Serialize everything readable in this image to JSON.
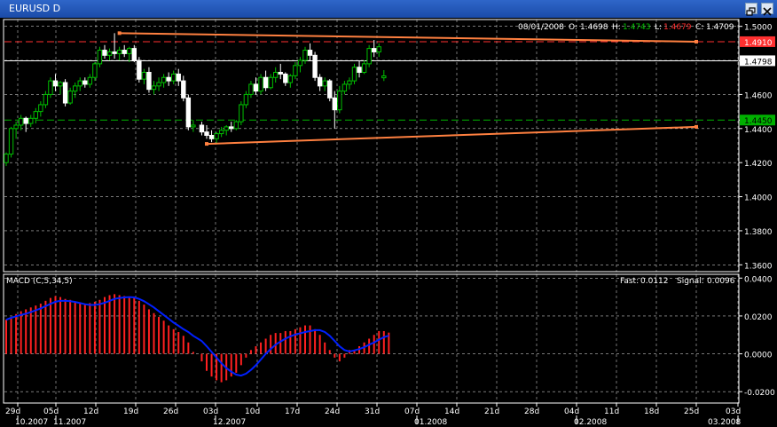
{
  "window": {
    "title": "EURUSD D"
  },
  "price_panel": {
    "ohlc": {
      "date": "08/01/2008",
      "o_label": "O:",
      "open": "1.4698",
      "h_label": "H:",
      "high": "1.4743",
      "l_label": "L:",
      "low": "1.4679",
      "c_label": "C:",
      "close": "1.4709"
    },
    "axis_labels": [
      "1.5000",
      "1.4798",
      "1.4600",
      "1.4450",
      "1.4400",
      "1.4200",
      "1.4000",
      "1.3800",
      "1.3600"
    ],
    "price_tags": {
      "red": "1.4910",
      "white": "1.4798",
      "green": "1.4450"
    }
  },
  "macd_panel": {
    "title": "MACD (C,5,34,5)",
    "fast_label": "Fast:",
    "fast": "0.0112",
    "signal_label": "Signal:",
    "signal": "0.0096",
    "axis_labels": [
      "0.0400",
      "0.0200",
      "0.0000",
      "-0.0200"
    ]
  },
  "time_axis": {
    "days": [
      "29d",
      "05d",
      "12d",
      "19d",
      "26d",
      "03d",
      "10d",
      "17d",
      "24d",
      "31d",
      "07d",
      "14d",
      "21d",
      "28d",
      "04d",
      "11d",
      "18d",
      "25d",
      "03d"
    ],
    "months": [
      "10.2007",
      "11.2007",
      "12.2007",
      "01.2008",
      "02.2008",
      "03.2008"
    ]
  },
  "colors": {
    "background": "#000000",
    "grid": "#c0c0c0",
    "bull": "#00c000",
    "bear": "#ffffff",
    "trendline": "#ff8040",
    "macd_hist": "#ff2020",
    "signal": "#0020ff",
    "resistance": "#ff3030",
    "support": "#00b000"
  },
  "chart_data": [
    {
      "type": "line",
      "title": "EURUSD D",
      "ylim": [
        1.356,
        1.504
      ],
      "dates": [
        "2007-10-29",
        "2007-11-05",
        "2007-11-12",
        "2007-11-19",
        "2007-11-26",
        "2007-12-03",
        "2007-12-10",
        "2007-12-17",
        "2007-12-24",
        "2007-12-31",
        "2008-01-07",
        "2008-01-14",
        "2008-01-21",
        "2008-01-28",
        "2008-02-04",
        "2008-02-11",
        "2008-02-18",
        "2008-02-25",
        "2008-03-03"
      ],
      "candles": [
        [
          1.42,
          1.426,
          1.418,
          1.425
        ],
        [
          1.425,
          1.441,
          1.423,
          1.44
        ],
        [
          1.44,
          1.444,
          1.434,
          1.442
        ],
        [
          1.442,
          1.448,
          1.439,
          1.446
        ],
        [
          1.446,
          1.447,
          1.438,
          1.443
        ],
        [
          1.443,
          1.448,
          1.441,
          1.446
        ],
        [
          1.446,
          1.452,
          1.443,
          1.45
        ],
        [
          1.45,
          1.456,
          1.447,
          1.454
        ],
        [
          1.454,
          1.462,
          1.452,
          1.46
        ],
        [
          1.46,
          1.47,
          1.458,
          1.468
        ],
        [
          1.468,
          1.472,
          1.462,
          1.465
        ],
        [
          1.465,
          1.468,
          1.46,
          1.467
        ],
        [
          1.467,
          1.469,
          1.453,
          1.455
        ],
        [
          1.455,
          1.464,
          1.454,
          1.462
        ],
        [
          1.462,
          1.467,
          1.458,
          1.465
        ],
        [
          1.465,
          1.47,
          1.462,
          1.468
        ],
        [
          1.468,
          1.47,
          1.464,
          1.466
        ],
        [
          1.466,
          1.472,
          1.464,
          1.47
        ],
        [
          1.47,
          1.479,
          1.468,
          1.478
        ],
        [
          1.478,
          1.488,
          1.476,
          1.486
        ],
        [
          1.486,
          1.489,
          1.481,
          1.483
        ],
        [
          1.483,
          1.487,
          1.48,
          1.485
        ],
        [
          1.485,
          1.496,
          1.481,
          1.484
        ],
        [
          1.484,
          1.488,
          1.48,
          1.486
        ],
        [
          1.486,
          1.489,
          1.482,
          1.484
        ],
        [
          1.484,
          1.488,
          1.479,
          1.487
        ],
        [
          1.487,
          1.489,
          1.479,
          1.48
        ],
        [
          1.48,
          1.482,
          1.467,
          1.469
        ],
        [
          1.469,
          1.475,
          1.466,
          1.473
        ],
        [
          1.473,
          1.476,
          1.461,
          1.463
        ],
        [
          1.463,
          1.468,
          1.46,
          1.465
        ],
        [
          1.465,
          1.47,
          1.462,
          1.467
        ],
        [
          1.467,
          1.472,
          1.464,
          1.47
        ],
        [
          1.47,
          1.473,
          1.465,
          1.468
        ],
        [
          1.468,
          1.474,
          1.466,
          1.472
        ],
        [
          1.472,
          1.475,
          1.465,
          1.468
        ],
        [
          1.468,
          1.471,
          1.456,
          1.458
        ],
        [
          1.458,
          1.46,
          1.439,
          1.441
        ],
        [
          1.441,
          1.445,
          1.438,
          1.442
        ],
        [
          1.442,
          1.444,
          1.436,
          1.438
        ],
        [
          1.438,
          1.442,
          1.434,
          1.436
        ],
        [
          1.436,
          1.439,
          1.432,
          1.434
        ],
        [
          1.434,
          1.438,
          1.431,
          1.437
        ],
        [
          1.437,
          1.441,
          1.435,
          1.439
        ],
        [
          1.439,
          1.442,
          1.436,
          1.441
        ],
        [
          1.441,
          1.444,
          1.438,
          1.44
        ],
        [
          1.44,
          1.445,
          1.439,
          1.444
        ],
        [
          1.444,
          1.456,
          1.442,
          1.454
        ],
        [
          1.454,
          1.462,
          1.452,
          1.46
        ],
        [
          1.46,
          1.468,
          1.458,
          1.466
        ],
        [
          1.466,
          1.47,
          1.46,
          1.462
        ],
        [
          1.462,
          1.472,
          1.46,
          1.47
        ],
        [
          1.47,
          1.474,
          1.462,
          1.464
        ],
        [
          1.464,
          1.472,
          1.463,
          1.47
        ],
        [
          1.47,
          1.476,
          1.467,
          1.473
        ],
        [
          1.473,
          1.478,
          1.469,
          1.472
        ],
        [
          1.472,
          1.473,
          1.465,
          1.467
        ],
        [
          1.467,
          1.472,
          1.464,
          1.471
        ],
        [
          1.471,
          1.479,
          1.469,
          1.477
        ],
        [
          1.477,
          1.482,
          1.473,
          1.48
        ],
        [
          1.48,
          1.488,
          1.478,
          1.486
        ],
        [
          1.486,
          1.49,
          1.48,
          1.483
        ],
        [
          1.483,
          1.485,
          1.468,
          1.47
        ],
        [
          1.47,
          1.472,
          1.462,
          1.465
        ],
        [
          1.465,
          1.47,
          1.462,
          1.468
        ],
        [
          1.468,
          1.469,
          1.456,
          1.458
        ],
        [
          1.458,
          1.462,
          1.44,
          1.451
        ],
        [
          1.451,
          1.465,
          1.449,
          1.462
        ],
        [
          1.462,
          1.468,
          1.46,
          1.466
        ],
        [
          1.466,
          1.47,
          1.463,
          1.468
        ],
        [
          1.468,
          1.478,
          1.466,
          1.476
        ],
        [
          1.476,
          1.48,
          1.47,
          1.473
        ],
        [
          1.473,
          1.48,
          1.472,
          1.478
        ],
        [
          1.478,
          1.489,
          1.476,
          1.487
        ],
        [
          1.487,
          1.492,
          1.482,
          1.485
        ],
        [
          1.485,
          1.49,
          1.482,
          1.488
        ],
        [
          1.4698,
          1.4743,
          1.4679,
          1.4709
        ]
      ],
      "hlines": [
        1.491,
        1.4798,
        1.445
      ],
      "trendlines": [
        {
          "from": [
            23,
            1.496
          ],
          "to": [
            82,
            1.491
          ]
        },
        {
          "from": [
            40,
            1.431
          ],
          "to": [
            82,
            1.441
          ]
        }
      ]
    },
    {
      "type": "bar",
      "title": "MACD (C,5,34,5)",
      "ylim": [
        -0.026,
        0.042
      ],
      "histogram": [
        0.018,
        0.0195,
        0.021,
        0.0225,
        0.0235,
        0.0245,
        0.0255,
        0.0265,
        0.028,
        0.0295,
        0.0305,
        0.03,
        0.029,
        0.0285,
        0.0275,
        0.027,
        0.0262,
        0.0268,
        0.0275,
        0.0285,
        0.03,
        0.031,
        0.0315,
        0.031,
        0.0305,
        0.03,
        0.0295,
        0.028,
        0.026,
        0.0235,
        0.0215,
        0.0195,
        0.0175,
        0.015,
        0.013,
        0.0115,
        0.0095,
        0.006,
        0.001,
        -0.004,
        -0.009,
        -0.012,
        -0.014,
        -0.015,
        -0.014,
        -0.012,
        -0.01,
        -0.006,
        -0.002,
        0.002,
        0.004,
        0.006,
        0.008,
        0.01,
        0.011,
        0.011,
        0.012,
        0.012,
        0.013,
        0.014,
        0.015,
        0.015,
        0.013,
        0.01,
        0.006,
        0.002,
        -0.002,
        -0.004,
        -0.002,
        0.002,
        0.002,
        0.004,
        0.006,
        0.008,
        0.01,
        0.012,
        0.012,
        0.0112
      ],
      "signal": [
        0.018,
        0.019,
        0.0198,
        0.0205,
        0.0212,
        0.022,
        0.023,
        0.024,
        0.0252,
        0.0264,
        0.0275,
        0.028,
        0.028,
        0.0278,
        0.0274,
        0.0268,
        0.0262,
        0.0258,
        0.0258,
        0.0262,
        0.027,
        0.028,
        0.029,
        0.0295,
        0.0298,
        0.03,
        0.0298,
        0.029,
        0.0278,
        0.0262,
        0.0245,
        0.0225,
        0.0205,
        0.0185,
        0.0165,
        0.0148,
        0.013,
        0.0115,
        0.0095,
        0.0068,
        0.004,
        0.001,
        -0.002,
        -0.005,
        -0.0075,
        -0.0095,
        -0.011,
        -0.0115,
        -0.0105,
        -0.0085,
        -0.006,
        -0.003,
        0.0,
        0.0025,
        0.0048,
        0.0065,
        0.008,
        0.0092,
        0.0102,
        0.0108,
        0.0115,
        0.012,
        0.0125,
        0.0125,
        0.0115,
        0.0095,
        0.0068,
        0.004,
        0.002,
        0.0012,
        0.0018,
        0.0025,
        0.0035,
        0.0048,
        0.006,
        0.0075,
        0.0088,
        0.0096
      ]
    }
  ]
}
